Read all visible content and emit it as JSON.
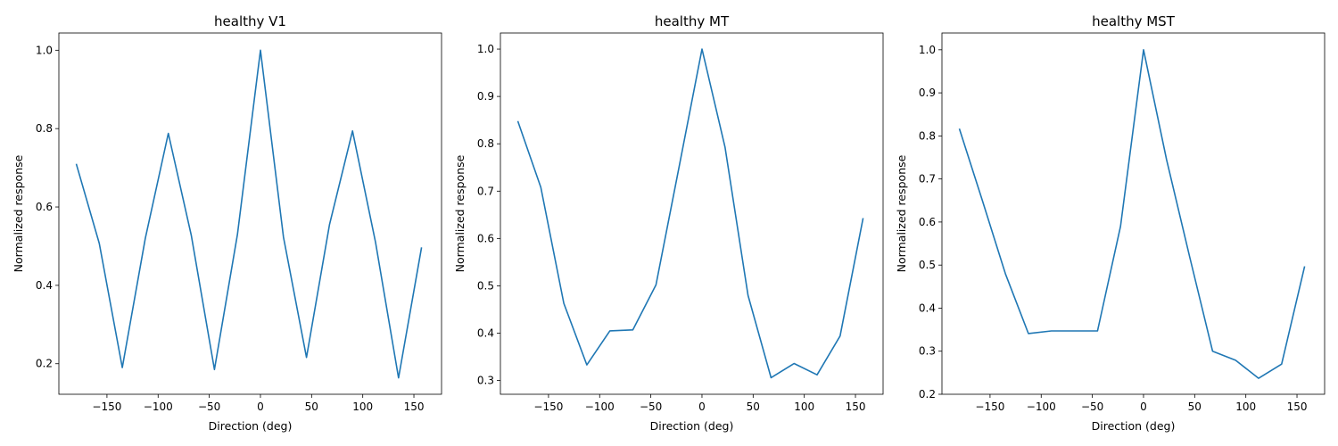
{
  "chart_data": [
    {
      "type": "line",
      "title": "healthy V1",
      "xlabel": "Direction (deg)",
      "ylabel": "Normalized response",
      "xlim": [
        -197,
        177
      ],
      "ylim": [
        0.122,
        1.044
      ],
      "xticks": [
        -150,
        -100,
        -50,
        0,
        50,
        100,
        150
      ],
      "xtick_labels": [
        "−150",
        "−100",
        "−50",
        "0",
        "50",
        "100",
        "150"
      ],
      "yticks": [
        0.2,
        0.4,
        0.6,
        0.8,
        1.0
      ],
      "ytick_labels": [
        "0.2",
        "0.4",
        "0.6",
        "0.8",
        "1.0"
      ],
      "grid": false,
      "color": "#1f77b4",
      "x": [
        -180,
        -157.5,
        -135,
        -112.5,
        -90,
        -67.5,
        -45,
        -22.5,
        0,
        22.5,
        45,
        67.5,
        90,
        112.5,
        135,
        157.5
      ],
      "y": [
        0.71,
        0.507,
        0.19,
        0.52,
        0.788,
        0.527,
        0.185,
        0.53,
        1.0,
        0.523,
        0.216,
        0.555,
        0.794,
        0.51,
        0.164,
        0.497
      ]
    },
    {
      "type": "line",
      "title": "healthy MT",
      "xlabel": "Direction (deg)",
      "ylabel": "Normalized response",
      "xlim": [
        -197,
        177
      ],
      "ylim": [
        0.271,
        1.034
      ],
      "xticks": [
        -150,
        -100,
        -50,
        0,
        50,
        100,
        150
      ],
      "xtick_labels": [
        "−150",
        "−100",
        "−50",
        "0",
        "50",
        "100",
        "150"
      ],
      "yticks": [
        0.3,
        0.4,
        0.5,
        0.6,
        0.7,
        0.8,
        0.9,
        1.0
      ],
      "ytick_labels": [
        "0.3",
        "0.4",
        "0.5",
        "0.6",
        "0.7",
        "0.8",
        "0.9",
        "1.0"
      ],
      "grid": false,
      "color": "#1f77b4",
      "x": [
        -180,
        -157.5,
        -135,
        -112.5,
        -90,
        -67.5,
        -45,
        -22.5,
        0,
        22.5,
        45,
        67.5,
        90,
        112.5,
        135,
        157.5
      ],
      "y": [
        0.848,
        0.708,
        0.463,
        0.333,
        0.405,
        0.407,
        0.502,
        0.75,
        1.0,
        0.793,
        0.48,
        0.306,
        0.336,
        0.312,
        0.394,
        0.643
      ]
    },
    {
      "type": "line",
      "title": "healthy MST",
      "xlabel": "Direction (deg)",
      "ylabel": "Normalized response",
      "xlim": [
        -197,
        177
      ],
      "ylim": [
        0.2,
        1.039
      ],
      "xticks": [
        -150,
        -100,
        -50,
        0,
        50,
        100,
        150
      ],
      "xtick_labels": [
        "−150",
        "−100",
        "−50",
        "0",
        "50",
        "100",
        "150"
      ],
      "yticks": [
        0.2,
        0.3,
        0.4,
        0.5,
        0.6,
        0.7,
        0.8,
        0.9,
        1.0
      ],
      "ytick_labels": [
        "0.2",
        "0.3",
        "0.4",
        "0.5",
        "0.6",
        "0.7",
        "0.8",
        "0.9",
        "1.0"
      ],
      "grid": false,
      "color": "#1f77b4",
      "x": [
        -180,
        -157.5,
        -135,
        -112.5,
        -90,
        -67.5,
        -45,
        -22.5,
        0,
        22.5,
        45,
        67.5,
        90,
        112.5,
        135,
        157.5
      ],
      "y": [
        0.817,
        0.65,
        0.48,
        0.341,
        0.347,
        0.347,
        0.347,
        0.59,
        1.0,
        0.745,
        0.52,
        0.3,
        0.279,
        0.237,
        0.27,
        0.497
      ]
    }
  ]
}
